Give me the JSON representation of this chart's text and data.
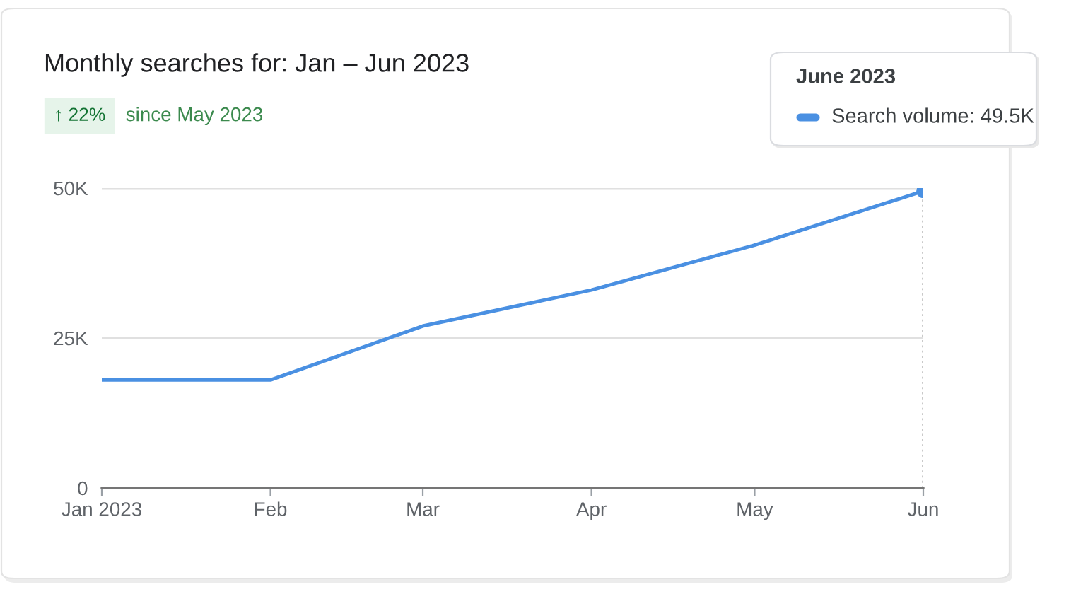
{
  "chart_data": {
    "type": "line",
    "title": "Monthly searches for: Jan – Jun 2023",
    "subtitle": "since May 2023",
    "annotations": [
      "↑ 22%",
      "June 2023",
      "Search volume: 49.5K"
    ],
    "x": [
      "2023-01",
      "2023-02",
      "2023-03",
      "2023-04",
      "2023-05",
      "2023-06"
    ],
    "series": [
      {
        "color": "#4a90e2",
        "values": [
          18000,
          18000,
          27000,
          33000,
          40500,
          49500
        ]
      },
      {
        "type": "scatter",
        "color": "#4a90e2",
        "x": [
          "2023-06"
        ],
        "values": [
          49500
        ],
        "marker": "circle"
      }
    ],
    "xlim": [
      "2023-01",
      "2023-06"
    ],
    "xticks": [
      {
        "value": "2023-01",
        "label": "Jan 2023"
      },
      {
        "value": "2023-02",
        "label": "Feb"
      },
      {
        "value": "2023-03",
        "label": "Mar"
      },
      {
        "value": "2023-04",
        "label": "Apr"
      },
      {
        "value": "2023-05",
        "label": "May"
      },
      {
        "value": "2023-06",
        "label": "Jun"
      }
    ],
    "ylim": [
      0,
      50000
    ],
    "yticks": [
      0,
      {
        "value": 25000,
        "label": "25K"
      },
      {
        "value": 50000,
        "label": "50K"
      }
    ],
    "ref_lines": [
      {
        "axis": "x",
        "value": "2023-06",
        "color": "#757575",
        "line_style": "dotted"
      }
    ],
    "grid": "y",
    "line_style": "solid"
  }
}
